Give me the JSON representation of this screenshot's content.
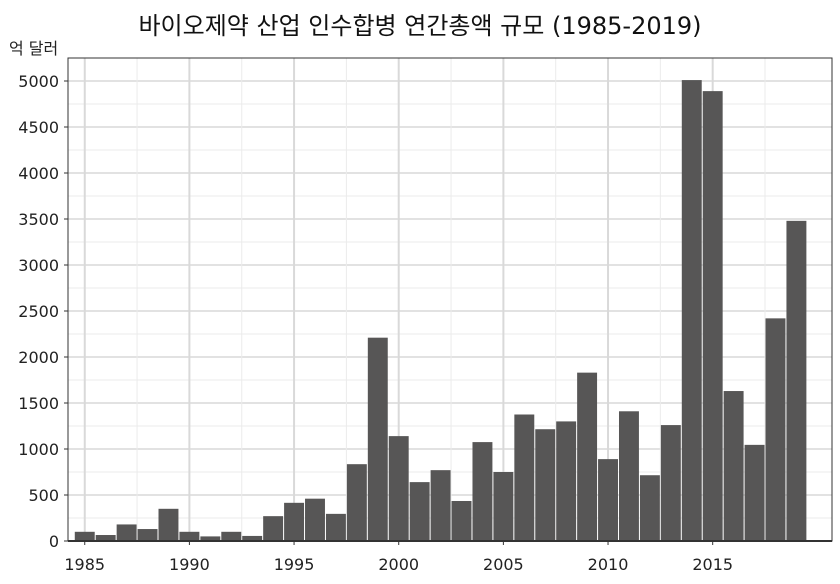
{
  "chart_data": {
    "type": "bar",
    "title": "바이오제약 산업 인수합병 연간총액 규모 (1985-2019)",
    "ylabel": "억 달러",
    "xlabel": "",
    "x_tick_labels": [
      "1985",
      "1990",
      "1995",
      "2000",
      "2005",
      "2010",
      "2015"
    ],
    "y_tick_labels": [
      "0",
      "500",
      "1000",
      "1500",
      "2000",
      "2500",
      "3000",
      "3500",
      "4000",
      "4500",
      "5000"
    ],
    "categories": [
      "1985",
      "1986",
      "1987",
      "1988",
      "1989",
      "1990",
      "1991",
      "1992",
      "1993",
      "1994",
      "1995",
      "1996",
      "1997",
      "1998",
      "1999",
      "2000",
      "2001",
      "2002",
      "2003",
      "2004",
      "2005",
      "2006",
      "2007",
      "2008",
      "2009",
      "2010",
      "2011",
      "2012",
      "2013",
      "2014",
      "2015",
      "2016",
      "2017",
      "2018",
      "2019"
    ],
    "values": [
      100,
      65,
      180,
      130,
      350,
      100,
      50,
      100,
      55,
      270,
      415,
      460,
      295,
      835,
      2210,
      1140,
      640,
      770,
      435,
      1075,
      750,
      1375,
      1215,
      1300,
      1830,
      890,
      1410,
      715,
      1260,
      5010,
      4890,
      1630,
      1045,
      2420,
      3480
    ],
    "ylim": [
      0,
      5250
    ],
    "xlim": [
      1984.2,
      2020.7
    ],
    "grid": true,
    "legend": "none",
    "colors": {
      "bar": "#575656",
      "grid_major": "#d9d9d9",
      "grid_minor": "#ebebeb",
      "axis": "#333333"
    }
  }
}
